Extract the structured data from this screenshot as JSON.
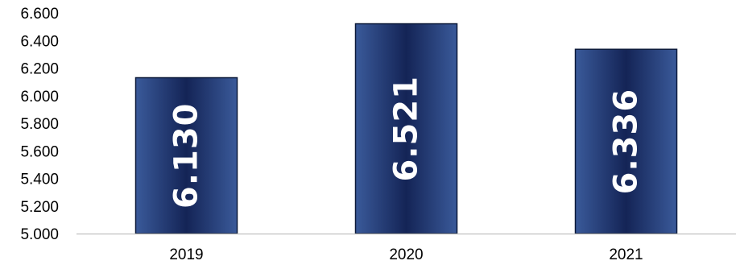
{
  "chart_data": {
    "type": "bar",
    "categories": [
      "2019",
      "2020",
      "2021"
    ],
    "values": [
      6130,
      6521,
      6336
    ],
    "data_labels": [
      "6.130",
      "6.521",
      "6.336"
    ],
    "y_ticks": [
      "5.000",
      "5.200",
      "5.400",
      "5.600",
      "5.800",
      "6.000",
      "6.200",
      "6.400",
      "6.600"
    ],
    "y_tick_values": [
      5000,
      5200,
      5400,
      5600,
      5800,
      6000,
      6200,
      6400,
      6600
    ],
    "ylim": [
      5000,
      6600
    ],
    "title": "",
    "xlabel": "",
    "ylabel": "",
    "grid": false,
    "legend": "none",
    "colors": {
      "bar_light": "#3a5a9a",
      "bar_dark": "#142456",
      "bar_edge": "#0a1838",
      "axis": "#bfbfbf",
      "text": "#000000",
      "label_text": "#ffffff"
    }
  }
}
